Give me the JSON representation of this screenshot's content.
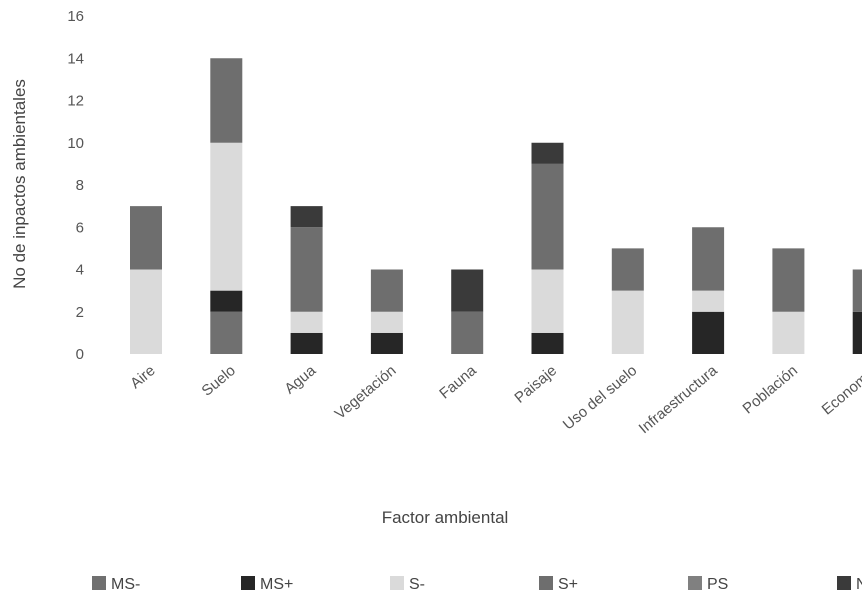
{
  "chart_data": {
    "type": "bar",
    "stacked": true,
    "title": "",
    "xlabel": "Factor ambiental",
    "ylabel": "No de inpactos ambientales",
    "ylim": [
      0,
      16
    ],
    "yticks": [
      0,
      2,
      4,
      6,
      8,
      10,
      12,
      14,
      16
    ],
    "grid": false,
    "legend_position": "bottom",
    "categories": [
      "Aire",
      "Suelo",
      "Agua",
      "Vegetación",
      "Fauna",
      "Paisaje",
      "Uso del suelo",
      "Infraestructura",
      "Población",
      "Economía"
    ],
    "series": [
      {
        "name": "MS-",
        "color": "#707070",
        "values": [
          0,
          2,
          0,
          0,
          0,
          0,
          0,
          0,
          0,
          0
        ]
      },
      {
        "name": "MS+",
        "color": "#262626",
        "values": [
          0,
          1,
          1,
          1,
          0,
          1,
          0,
          2,
          0,
          2
        ]
      },
      {
        "name": "S-",
        "color": "#dadada",
        "values": [
          4,
          7,
          1,
          1,
          0,
          3,
          3,
          1,
          2,
          0
        ]
      },
      {
        "name": "S+",
        "color": "#6e6e6e",
        "values": [
          3,
          4,
          4,
          2,
          2,
          5,
          2,
          3,
          3,
          2
        ]
      },
      {
        "name": "PS",
        "color": "#808080",
        "values": [
          0,
          0,
          0,
          0,
          0,
          0,
          0,
          0,
          0,
          0
        ]
      },
      {
        "name": "NS",
        "color": "#3a3a3a",
        "values": [
          0,
          0,
          1,
          0,
          2,
          1,
          0,
          0,
          0,
          0
        ]
      }
    ]
  }
}
